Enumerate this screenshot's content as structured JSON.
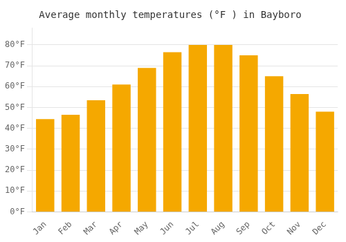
{
  "chart_data": {
    "type": "bar",
    "title": "Average monthly temperatures (°F ) in Bayboro",
    "categories": [
      "Jan",
      "Feb",
      "Mar",
      "Apr",
      "May",
      "Jun",
      "Jul",
      "Aug",
      "Sep",
      "Oct",
      "Nov",
      "Dec"
    ],
    "values": [
      44.5,
      46.5,
      53.5,
      61.0,
      69.0,
      76.5,
      80.0,
      80.0,
      75.0,
      65.0,
      56.5,
      48.0
    ],
    "color": "#F5A800",
    "ylim": [
      0,
      88
    ],
    "yticks": [
      {
        "value": 0,
        "label": "0°F"
      },
      {
        "value": 10,
        "label": "10°F"
      },
      {
        "value": 20,
        "label": "20°F"
      },
      {
        "value": 30,
        "label": "30°F"
      },
      {
        "value": 40,
        "label": "40°F"
      },
      {
        "value": 50,
        "label": "50°F"
      },
      {
        "value": 60,
        "label": "60°F"
      },
      {
        "value": 70,
        "label": "70°F"
      },
      {
        "value": 80,
        "label": "80°F"
      }
    ],
    "grid": true
  }
}
